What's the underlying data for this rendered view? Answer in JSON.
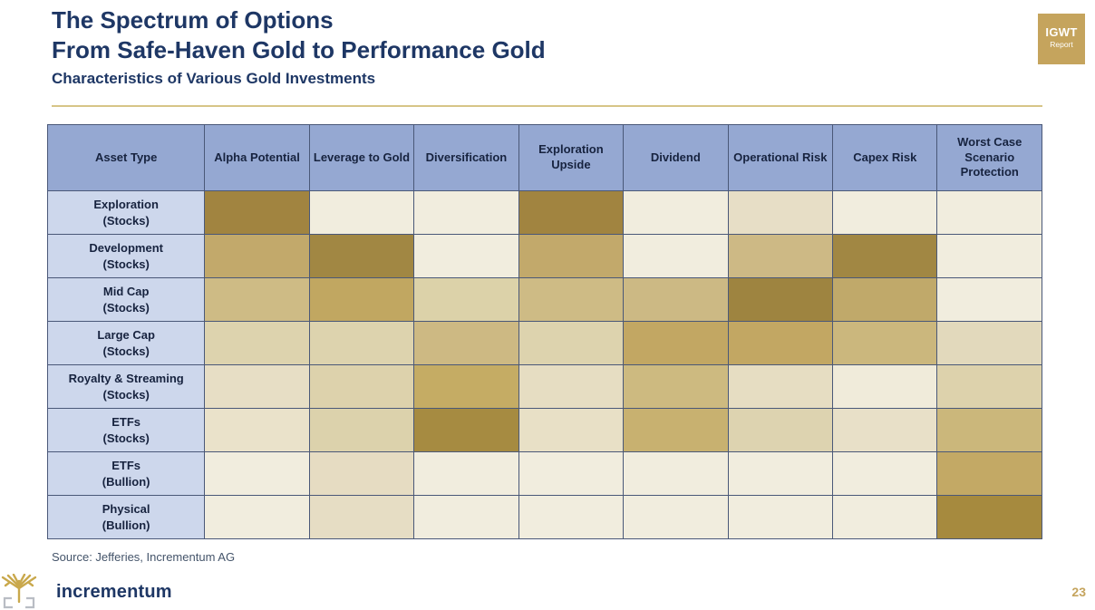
{
  "page": {
    "title_line1": "The Spectrum of Options",
    "title_line2": "From Safe-Haven Gold to Performance Gold",
    "subtitle": "Characteristics of Various Gold Investments",
    "badge": {
      "line1": "IGWT",
      "line2": "Report"
    },
    "source": "Source: Jefferies, Incrementum AG",
    "logo_text": "incrementum",
    "page_number": "23"
  },
  "colors": {
    "title_navy": "#1E3765",
    "header_blue": "#95A8D2",
    "row_label_blue": "#CDD7EC",
    "table_border": "#4A5878",
    "gold_accent": "#C5A45D",
    "gold_rule": "#D7C587",
    "scale_lowest": "#F1EDDE",
    "scale_highest": "#A18440"
  },
  "chart_data": {
    "type": "heatmap",
    "title": "Characteristics of Various Gold Investments",
    "legend_note": "darker gold = stronger characteristic, cream = weakest (intensity scale 0-5)",
    "columns": [
      "Asset Type",
      "Alpha Potential",
      "Leverage to Gold",
      "Diversification",
      "Exploration Upside",
      "Dividend",
      "Operational Risk",
      "Capex Risk",
      "Worst Case Scenario Protection"
    ],
    "rows": [
      {
        "label": "Exploration",
        "sublabel": "(Stocks)",
        "levels": [
          5,
          0,
          0,
          5,
          0,
          1,
          0,
          0
        ],
        "cell_colors": [
          "#A18440",
          "#F1EDDE",
          "#F1EDDE",
          "#A18440",
          "#F1EDDE",
          "#E7DEC6",
          "#F1EDDE",
          "#F1EDDE"
        ]
      },
      {
        "label": "Development",
        "sublabel": "(Stocks)",
        "levels": [
          4,
          5,
          0,
          4,
          0,
          3,
          5,
          0
        ],
        "cell_colors": [
          "#C2A96B",
          "#A18743",
          "#F1EDDE",
          "#C2A96B",
          "#F1EDDE",
          "#CDB985",
          "#A18743",
          "#F1EDDE"
        ]
      },
      {
        "label": "Mid Cap",
        "sublabel": "(Stocks)",
        "levels": [
          3,
          4,
          2,
          3,
          3,
          5,
          4,
          0
        ],
        "cell_colors": [
          "#CEBB85",
          "#C1A761",
          "#DCD2A9",
          "#CEBB85",
          "#CCB984",
          "#9E8440",
          "#C0A96A",
          "#F1EDDE"
        ]
      },
      {
        "label": "Large Cap",
        "sublabel": "(Stocks)",
        "levels": [
          2,
          2,
          3,
          2,
          4,
          4,
          3,
          1
        ],
        "cell_colors": [
          "#DDD3AE",
          "#DDD3AE",
          "#CDB983",
          "#DDD3AE",
          "#C2A763",
          "#C2A763",
          "#CBB77D",
          "#E2D9BC"
        ]
      },
      {
        "label": "Royalty & Streaming",
        "sublabel": "(Stocks)",
        "levels": [
          1,
          2,
          4,
          1,
          3,
          1,
          0,
          2
        ],
        "cell_colors": [
          "#E7DEC5",
          "#DDD2AC",
          "#C5AC64",
          "#E6DDC2",
          "#CDBA80",
          "#E6DDC2",
          "#F0EBDA",
          "#DDD2AC"
        ]
      },
      {
        "label": "ETFs",
        "sublabel": "(Stocks)",
        "levels": [
          1,
          2,
          5,
          1,
          4,
          2,
          1,
          3
        ],
        "cell_colors": [
          "#EAE2CA",
          "#DCD2AC",
          "#A68B41",
          "#E8E0C6",
          "#C8B170",
          "#DDD3B0",
          "#E8E0C8",
          "#CBB77B"
        ]
      },
      {
        "label": "ETFs",
        "sublabel": "(Bullion)",
        "levels": [
          0,
          1,
          0,
          0,
          0,
          0,
          0,
          4
        ],
        "cell_colors": [
          "#F1EDDE",
          "#E6DCC2",
          "#F1EDDE",
          "#F1EDDE",
          "#F1EDDE",
          "#F1EDDE",
          "#F1EDDE",
          "#C3A965"
        ]
      },
      {
        "label": "Physical",
        "sublabel": "(Bullion)",
        "levels": [
          0,
          1,
          0,
          0,
          0,
          0,
          0,
          5
        ],
        "cell_colors": [
          "#F1EDDE",
          "#E6DDC4",
          "#F1EDDE",
          "#F1EDDE",
          "#F1EDDE",
          "#F1EDDE",
          "#F1EDDE",
          "#A68A3E"
        ]
      }
    ]
  }
}
